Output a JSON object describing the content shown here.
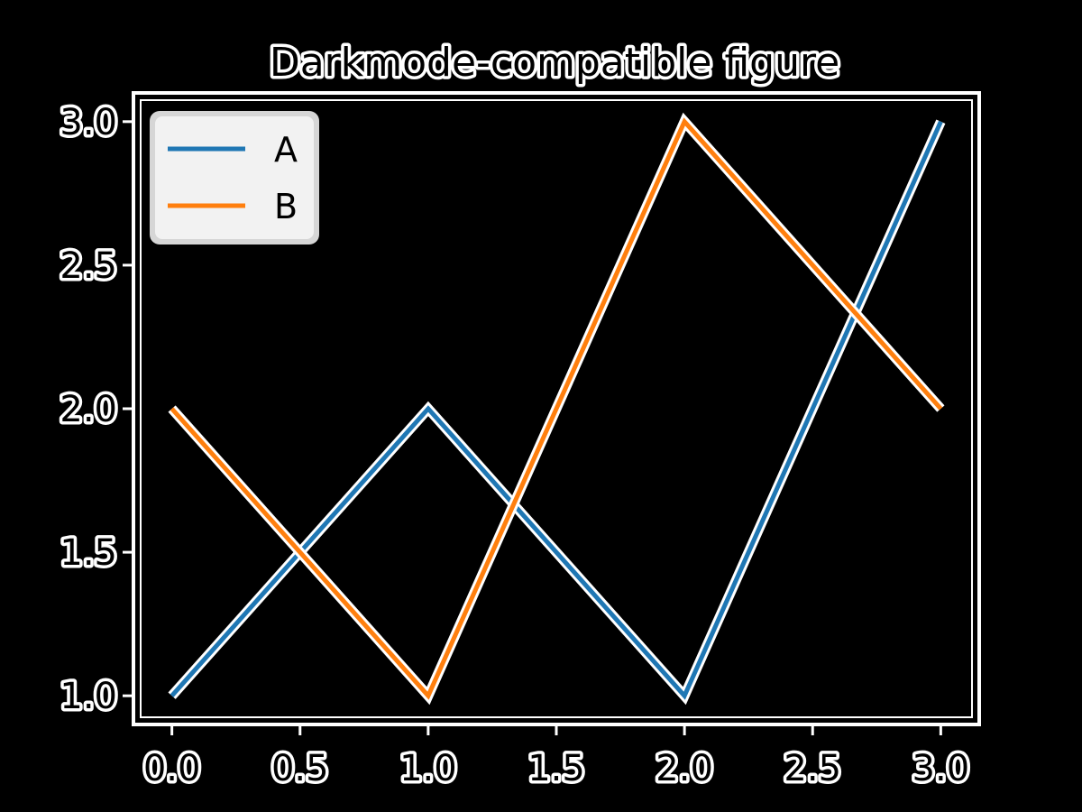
{
  "chart_data": {
    "type": "line",
    "title": "Darkmode-compatible figure",
    "xlabel": "",
    "ylabel": "",
    "x": [
      0,
      1,
      2,
      3
    ],
    "series": [
      {
        "name": "A",
        "values": [
          1,
          2,
          1,
          3
        ],
        "color": "#1f77b4"
      },
      {
        "name": "B",
        "values": [
          2,
          1,
          3,
          2
        ],
        "color": "#ff7f0e"
      }
    ],
    "xlim": [
      -0.15,
      3.15
    ],
    "ylim": [
      0.9,
      3.1
    ],
    "xticks": [
      0,
      0.5,
      1,
      1.5,
      2,
      2.5,
      3
    ],
    "xtick_labels": [
      "0.0",
      "0.5",
      "1.0",
      "1.5",
      "2.0",
      "2.5",
      "3.0"
    ],
    "yticks": [
      1,
      1.5,
      2,
      2.5,
      3
    ],
    "ytick_labels": [
      "1.0",
      "1.5",
      "2.0",
      "2.5",
      "3.0"
    ],
    "grid": false,
    "legend_position": "upper-left",
    "background_color": "#000000",
    "foreground_color": "#ffffff",
    "text_fill_color": "#000000"
  }
}
